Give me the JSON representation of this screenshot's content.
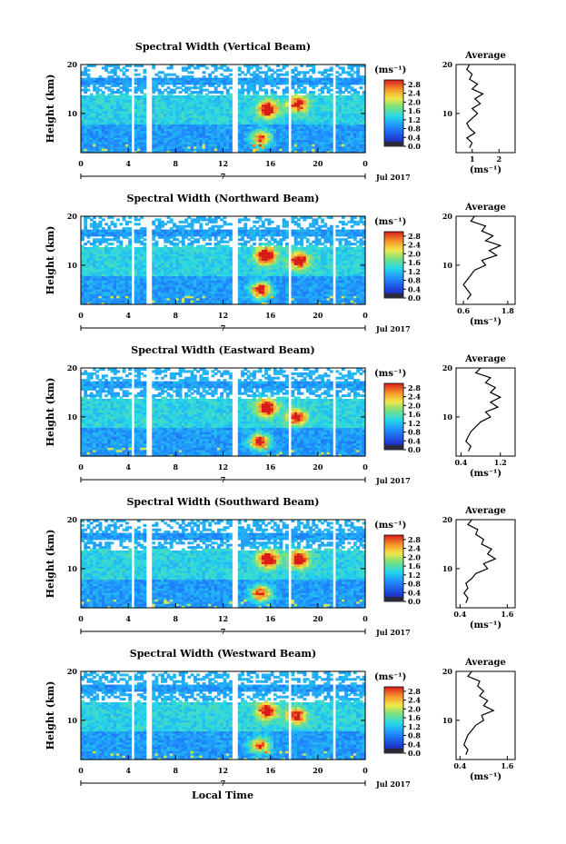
{
  "figure": {
    "xlabel": "Local Time",
    "date_label": "Jul 2017",
    "day_label": "7",
    "height_label": "Height (km)",
    "unit_label": "(ms⁻¹)",
    "avg_title": "Average"
  },
  "colorbar": {
    "ticks": [
      "2.8",
      "2.4",
      "2.0",
      "1.6",
      "1.2",
      "0.8",
      "0.4",
      "0.0"
    ],
    "range": [
      0,
      3.0
    ]
  },
  "chart_data": [
    {
      "type": "heatmap",
      "title": "Spectral Width (Vertical Beam)",
      "xlabel": "",
      "ylabel": "Height (km)",
      "xlim": [
        0,
        24
      ],
      "ylim": [
        2,
        20
      ],
      "x_ticks": [
        "0",
        "4",
        "8",
        "12",
        "16",
        "20",
        "0"
      ],
      "y_ticks": [
        "20",
        "10"
      ],
      "data_gaps_hours": [
        [
          4.2,
          4.6
        ],
        [
          5.6,
          6.0
        ],
        [
          12.8,
          13.3
        ],
        [
          17.4,
          17.8
        ],
        [
          21.2,
          21.6
        ]
      ],
      "hotspots": [
        {
          "t": 15.8,
          "h": 11,
          "v": 2.6
        },
        {
          "t": 15.2,
          "h": 5,
          "v": 2.0
        },
        {
          "t": 18.3,
          "h": 12,
          "v": 2.2
        }
      ],
      "average": {
        "title": "Average",
        "xlabel": "(ms⁻¹)",
        "x_ticks": [
          "1",
          "2"
        ],
        "xlim": [
          0.4,
          2.6
        ],
        "y_ticks": [
          "20",
          "10"
        ],
        "profile": [
          [
            0.9,
            3
          ],
          [
            1.0,
            4
          ],
          [
            0.8,
            5
          ],
          [
            1.1,
            6
          ],
          [
            0.9,
            7
          ],
          [
            0.8,
            8
          ],
          [
            1.0,
            9
          ],
          [
            1.2,
            10
          ],
          [
            1.0,
            11
          ],
          [
            1.3,
            12
          ],
          [
            1.1,
            13
          ],
          [
            1.4,
            14
          ],
          [
            1.0,
            15
          ],
          [
            1.2,
            16
          ],
          [
            0.9,
            17
          ],
          [
            1.0,
            18
          ],
          [
            0.8,
            19
          ],
          [
            0.9,
            20
          ]
        ]
      }
    },
    {
      "type": "heatmap",
      "title": "Spectral Width (Northward Beam)",
      "xlabel": "",
      "ylabel": "Height (km)",
      "xlim": [
        0,
        24
      ],
      "ylim": [
        2,
        20
      ],
      "x_ticks": [
        "0",
        "4",
        "8",
        "12",
        "16",
        "20",
        "0"
      ],
      "y_ticks": [
        "20",
        "10"
      ],
      "data_gaps_hours": [
        [
          4.2,
          4.6
        ],
        [
          5.6,
          6.0
        ],
        [
          12.8,
          13.3
        ],
        [
          17.4,
          17.8
        ],
        [
          21.2,
          21.6
        ]
      ],
      "hotspots": [
        {
          "t": 15.6,
          "h": 12,
          "v": 2.8
        },
        {
          "t": 15.2,
          "h": 5,
          "v": 2.6
        },
        {
          "t": 18.4,
          "h": 11,
          "v": 2.4
        }
      ],
      "average": {
        "title": "Average",
        "xlabel": "(ms⁻¹)",
        "x_ticks": [
          "0.6",
          "1.8"
        ],
        "xlim": [
          0.4,
          2.0
        ],
        "y_ticks": [
          "20",
          "10"
        ],
        "profile": [
          [
            0.7,
            3
          ],
          [
            0.8,
            4
          ],
          [
            0.7,
            5
          ],
          [
            0.6,
            6
          ],
          [
            0.7,
            7
          ],
          [
            0.8,
            8
          ],
          [
            0.9,
            9
          ],
          [
            1.2,
            10
          ],
          [
            1.1,
            11
          ],
          [
            1.5,
            12
          ],
          [
            1.3,
            13
          ],
          [
            1.6,
            14
          ],
          [
            1.2,
            15
          ],
          [
            1.4,
            16
          ],
          [
            1.1,
            17
          ],
          [
            1.2,
            18
          ],
          [
            0.8,
            19
          ],
          [
            0.9,
            20
          ]
        ]
      }
    },
    {
      "type": "heatmap",
      "title": "Spectral Width (Eastward Beam)",
      "xlabel": "",
      "ylabel": "Height (km)",
      "xlim": [
        0,
        24
      ],
      "ylim": [
        2,
        20
      ],
      "x_ticks": [
        "0",
        "4",
        "8",
        "12",
        "16",
        "20",
        "0"
      ],
      "y_ticks": [
        "20",
        "10"
      ],
      "data_gaps_hours": [
        [
          4.2,
          4.6
        ],
        [
          5.6,
          6.0
        ],
        [
          12.8,
          13.3
        ],
        [
          17.4,
          17.8
        ],
        [
          21.2,
          21.6
        ]
      ],
      "hotspots": [
        {
          "t": 15.7,
          "h": 12,
          "v": 2.7
        },
        {
          "t": 15.1,
          "h": 5,
          "v": 2.5
        },
        {
          "t": 18.2,
          "h": 10,
          "v": 2.2
        }
      ],
      "average": {
        "title": "Average",
        "xlabel": "(ms⁻¹)",
        "x_ticks": [
          "0.4",
          "1.2"
        ],
        "xlim": [
          0.3,
          1.5
        ],
        "y_ticks": [
          "20",
          "10"
        ],
        "profile": [
          [
            0.55,
            3
          ],
          [
            0.6,
            4
          ],
          [
            0.5,
            5
          ],
          [
            0.55,
            6
          ],
          [
            0.6,
            7
          ],
          [
            0.7,
            8
          ],
          [
            0.8,
            9
          ],
          [
            1.0,
            10
          ],
          [
            0.9,
            11
          ],
          [
            1.15,
            12
          ],
          [
            1.0,
            13
          ],
          [
            1.2,
            14
          ],
          [
            1.0,
            15
          ],
          [
            1.1,
            16
          ],
          [
            0.9,
            17
          ],
          [
            1.0,
            18
          ],
          [
            0.7,
            19
          ],
          [
            0.8,
            20
          ]
        ]
      }
    },
    {
      "type": "heatmap",
      "title": "Spectral Width (Southward Beam)",
      "xlabel": "",
      "ylabel": "Height (km)",
      "xlim": [
        0,
        24
      ],
      "ylim": [
        2,
        20
      ],
      "x_ticks": [
        "0",
        "4",
        "8",
        "12",
        "16",
        "20",
        "0"
      ],
      "y_ticks": [
        "20",
        "10"
      ],
      "data_gaps_hours": [
        [
          4.2,
          4.6
        ],
        [
          5.6,
          6.0
        ],
        [
          12.8,
          13.3
        ],
        [
          17.4,
          17.8
        ],
        [
          21.2,
          21.6
        ]
      ],
      "hotspots": [
        {
          "t": 15.8,
          "h": 12,
          "v": 2.8
        },
        {
          "t": 15.2,
          "h": 5,
          "v": 2.3
        },
        {
          "t": 18.4,
          "h": 12,
          "v": 2.6
        }
      ],
      "average": {
        "title": "Average",
        "xlabel": "(ms⁻¹)",
        "x_ticks": [
          "0.4",
          "1.6"
        ],
        "xlim": [
          0.3,
          1.8
        ],
        "y_ticks": [
          "20",
          "10"
        ],
        "profile": [
          [
            0.55,
            3
          ],
          [
            0.6,
            4
          ],
          [
            0.5,
            5
          ],
          [
            0.6,
            6
          ],
          [
            0.55,
            7
          ],
          [
            0.7,
            8
          ],
          [
            0.8,
            9
          ],
          [
            1.1,
            10
          ],
          [
            1.0,
            11
          ],
          [
            1.3,
            12
          ],
          [
            1.1,
            13
          ],
          [
            1.2,
            14
          ],
          [
            0.95,
            15
          ],
          [
            1.0,
            16
          ],
          [
            0.8,
            17
          ],
          [
            0.85,
            18
          ],
          [
            0.6,
            19
          ],
          [
            0.7,
            20
          ]
        ]
      }
    },
    {
      "type": "heatmap",
      "title": "Spectral Width (Westward Beam)",
      "xlabel": "Local Time",
      "ylabel": "Height (km)",
      "xlim": [
        0,
        24
      ],
      "ylim": [
        2,
        20
      ],
      "x_ticks": [
        "0",
        "4",
        "8",
        "12",
        "16",
        "20",
        "0"
      ],
      "y_ticks": [
        "20",
        "10"
      ],
      "data_gaps_hours": [
        [
          4.2,
          4.6
        ],
        [
          5.6,
          6.0
        ],
        [
          12.8,
          13.3
        ],
        [
          17.4,
          17.8
        ],
        [
          21.2,
          21.6
        ]
      ],
      "hotspots": [
        {
          "t": 15.7,
          "h": 12,
          "v": 2.4
        },
        {
          "t": 15.1,
          "h": 5,
          "v": 2.0
        },
        {
          "t": 18.2,
          "h": 11,
          "v": 2.2
        }
      ],
      "average": {
        "title": "Average",
        "xlabel": "(ms⁻¹)",
        "x_ticks": [
          "0.4",
          "1.6"
        ],
        "xlim": [
          0.3,
          1.8
        ],
        "y_ticks": [
          "20",
          "10"
        ],
        "profile": [
          [
            0.55,
            3
          ],
          [
            0.6,
            4
          ],
          [
            0.5,
            5
          ],
          [
            0.55,
            6
          ],
          [
            0.6,
            7
          ],
          [
            0.7,
            8
          ],
          [
            0.8,
            9
          ],
          [
            1.0,
            10
          ],
          [
            0.95,
            11
          ],
          [
            1.25,
            12
          ],
          [
            1.0,
            13
          ],
          [
            1.1,
            14
          ],
          [
            0.9,
            15
          ],
          [
            1.0,
            16
          ],
          [
            0.85,
            17
          ],
          [
            0.9,
            18
          ],
          [
            0.6,
            19
          ],
          [
            0.7,
            20
          ]
        ]
      }
    }
  ]
}
